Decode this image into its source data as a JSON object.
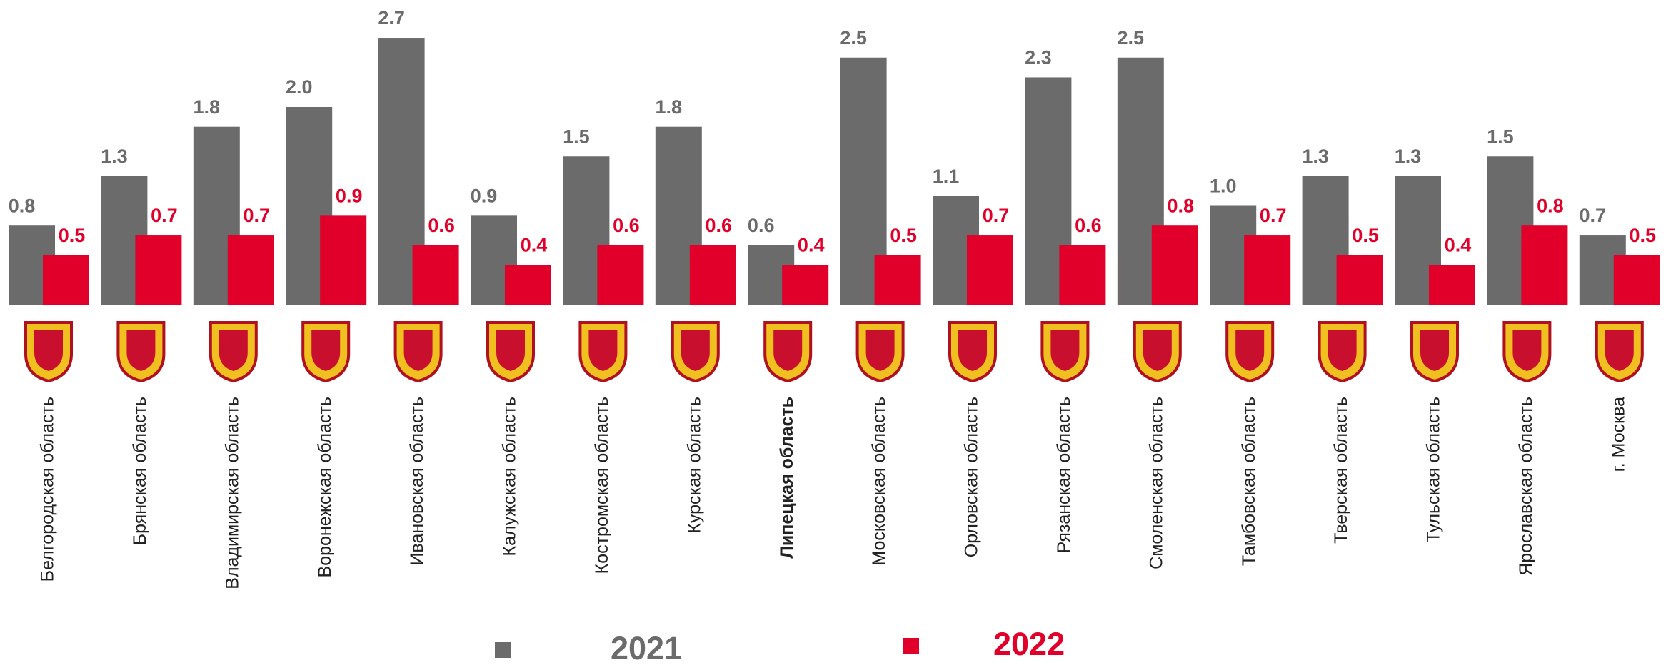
{
  "chart_data": {
    "type": "bar",
    "categories": [
      "Белгородская область",
      "Брянская область",
      "Владимирская область",
      "Воронежская область",
      "Ивановская область",
      "Калужская область",
      "Костромская область",
      "Курская область",
      "Липецкая область",
      "Московская область",
      "Орловская область",
      "Рязанская область",
      "Смоленская область",
      "Тамбовская область",
      "Тверская область",
      "Тульская область",
      "Ярославская область",
      "г. Москва"
    ],
    "series": [
      {
        "name": "2021",
        "color": "#6b6b6b",
        "values": [
          0.8,
          1.3,
          1.8,
          2.0,
          2.7,
          0.9,
          1.5,
          1.8,
          0.6,
          2.5,
          1.1,
          2.3,
          2.5,
          1.0,
          1.3,
          1.3,
          1.5,
          0.7
        ],
        "value_labels": [
          "0.8",
          "1.3",
          "1.8",
          "2.0",
          "2.7",
          "0.9",
          "1.5",
          "1.8",
          "0.6",
          "2.5",
          "1.1",
          "2.3",
          "2.5",
          "1.0",
          "1.3",
          "1.3",
          "1.5",
          "0.7"
        ]
      },
      {
        "name": "2022",
        "color": "#e0002a",
        "values": [
          0.5,
          0.7,
          0.7,
          0.9,
          0.6,
          0.4,
          0.6,
          0.6,
          0.4,
          0.5,
          0.7,
          0.6,
          0.8,
          0.7,
          0.5,
          0.4,
          0.8,
          0.5
        ],
        "value_labels": [
          "0.5",
          "0.7",
          "0.7",
          "0.9",
          "0.6",
          "0.4",
          "0.6",
          "0.6",
          "0.4",
          "0.5",
          "0.7",
          "0.6",
          "0.8",
          "0.7",
          "0.5",
          "0.4",
          "0.8",
          "0.5"
        ]
      }
    ],
    "ylim": [
      0,
      3
    ],
    "highlight_category": 8,
    "legend": "bottom"
  }
}
